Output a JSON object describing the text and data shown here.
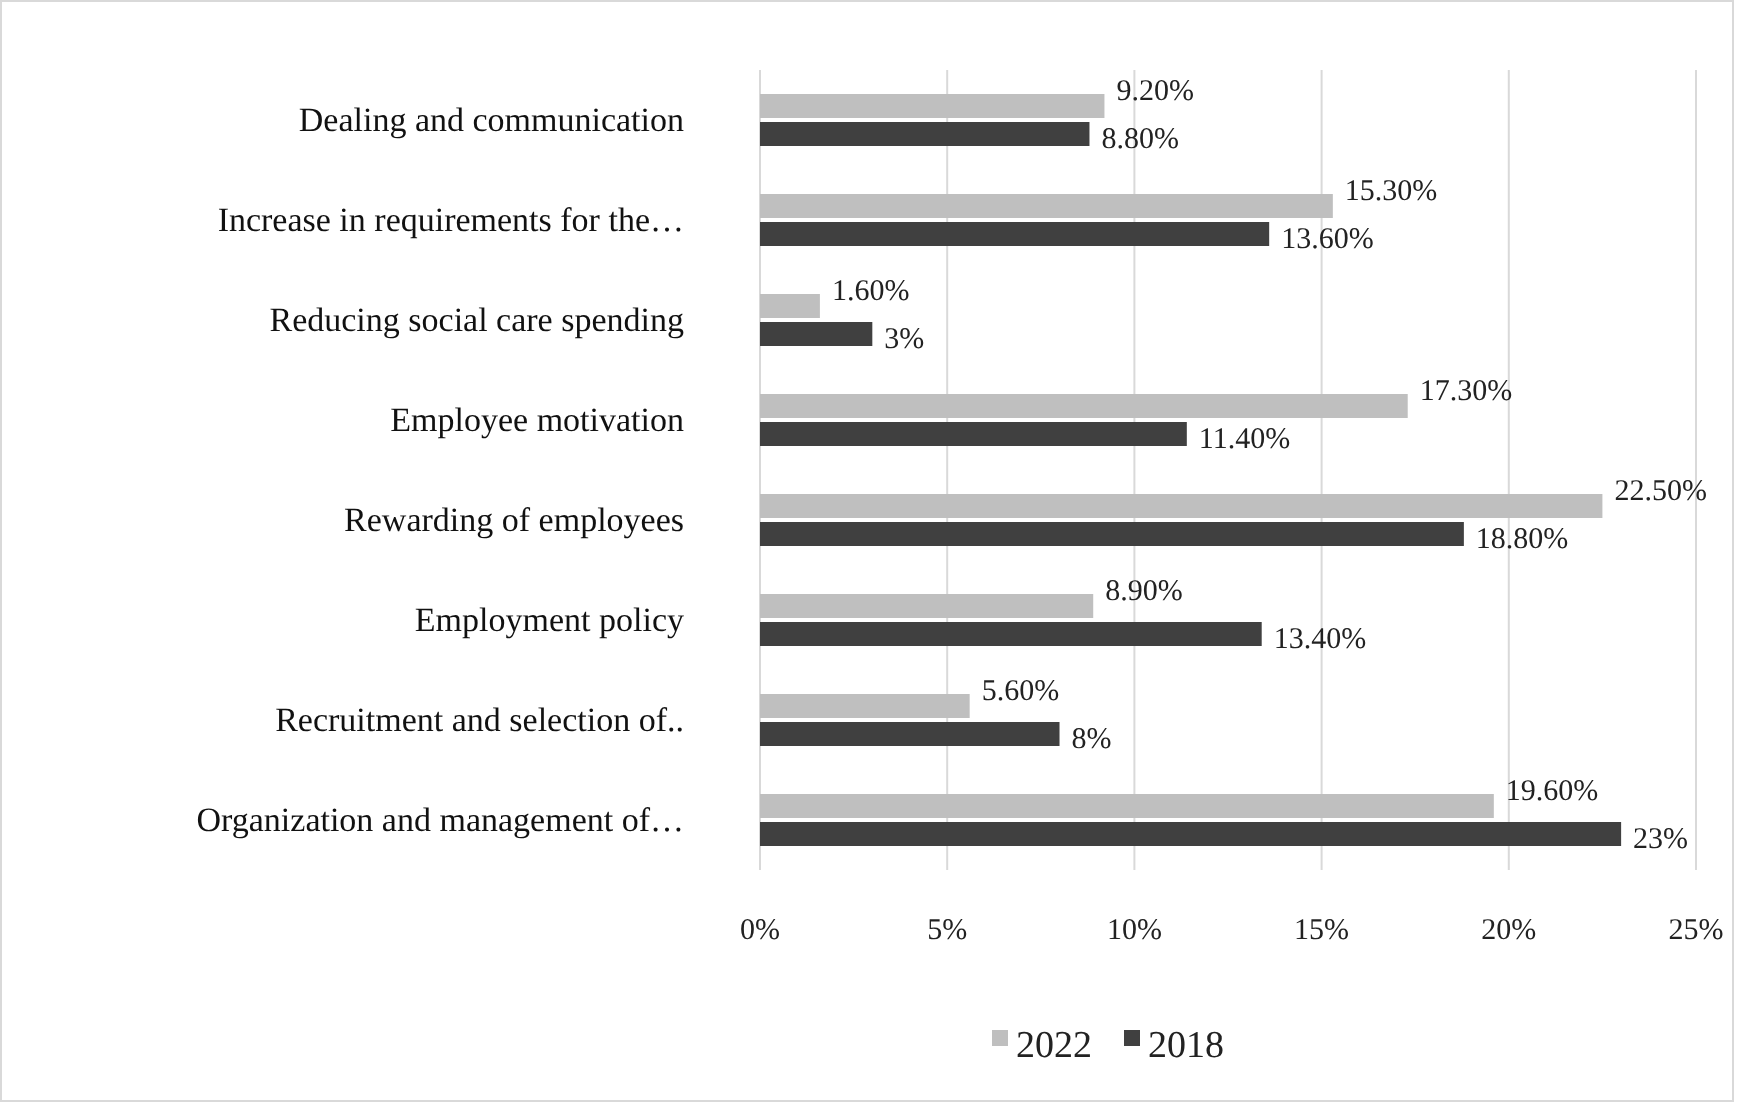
{
  "chart_data": {
    "type": "bar",
    "orientation": "horizontal",
    "categories": [
      "Dealing and communication",
      "Increase in requirements for the…",
      "Reducing social care spending",
      "Employee motivation",
      "Rewarding of employees",
      "Employment policy",
      "Recruitment and selection of..",
      "Organization and management of…"
    ],
    "series": [
      {
        "name": "2022",
        "color": "#bfbfbf",
        "values": [
          9.2,
          15.3,
          1.6,
          17.3,
          22.5,
          8.9,
          5.6,
          19.6
        ],
        "value_labels": [
          "9.20%",
          "15.30%",
          "1.60%",
          "17.30%",
          "22.50%",
          "8.90%",
          "5.60%",
          "19.60%"
        ]
      },
      {
        "name": "2018",
        "color": "#404040",
        "values": [
          8.8,
          13.6,
          3,
          11.4,
          18.8,
          13.4,
          8,
          23
        ],
        "value_labels": [
          "8.80%",
          "13.60%",
          "3%",
          "11.40%",
          "18.80%",
          "13.40%",
          "8%",
          "23%"
        ]
      }
    ],
    "xlim": [
      0,
      25
    ],
    "xticks": [
      {
        "value": 0,
        "label": "0%"
      },
      {
        "value": 5,
        "label": "5%"
      },
      {
        "value": 10,
        "label": "10%"
      },
      {
        "value": 15,
        "label": "15%"
      },
      {
        "value": 20,
        "label": "20%"
      },
      {
        "value": 25,
        "label": "25%"
      }
    ],
    "grid": "x",
    "legend": "bottom"
  }
}
